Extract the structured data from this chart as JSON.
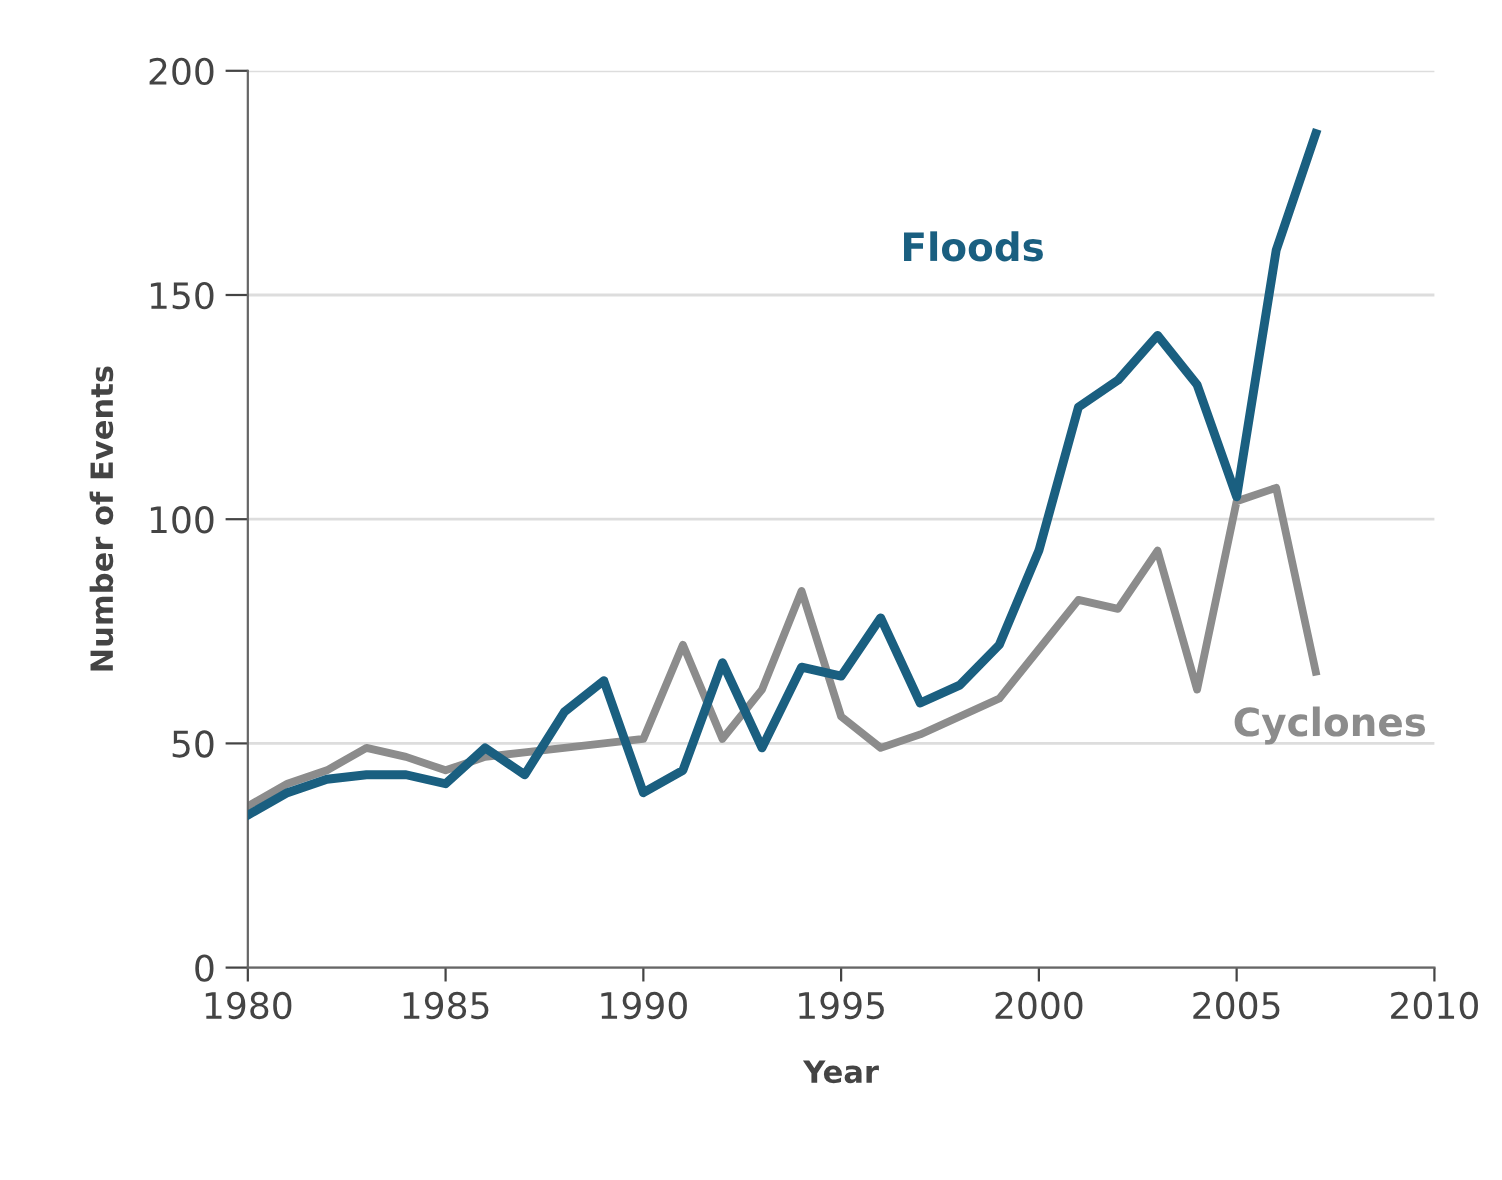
{
  "chart_data": {
    "type": "line",
    "xlabel": "Year",
    "ylabel": "Number of Events",
    "x": [
      1980,
      1981,
      1982,
      1983,
      1984,
      1985,
      1986,
      1987,
      1988,
      1989,
      1990,
      1991,
      1992,
      1993,
      1994,
      1995,
      1996,
      1997,
      1998,
      1999,
      2000,
      2001,
      2002,
      2003,
      2004,
      2005,
      2006,
      2007
    ],
    "series": [
      {
        "name": "Floods",
        "color": "#1a5f80",
        "values": [
          34,
          39,
          42,
          43,
          43,
          41,
          49,
          43,
          57,
          64,
          39,
          44,
          68,
          49,
          67,
          65,
          78,
          59,
          63,
          72,
          93,
          125,
          131,
          141,
          130,
          105,
          160,
          186
        ]
      },
      {
        "name": "Cyclones",
        "color": "#8c8c8c",
        "values": [
          36,
          41,
          44,
          49,
          47,
          44,
          47,
          48,
          49,
          50,
          51,
          72,
          51,
          62,
          84,
          56,
          49,
          52,
          56,
          60,
          71,
          82,
          80,
          93,
          62,
          104,
          107,
          66
        ]
      }
    ],
    "xlim": [
      1980,
      2010
    ],
    "xticks": [
      1980,
      1985,
      1990,
      1995,
      2000,
      2005,
      2010
    ],
    "ylim": [
      0,
      200
    ],
    "yticks": [
      0,
      50,
      100,
      150,
      200
    ],
    "grid": "y",
    "legend": false,
    "marker": "none",
    "line_style": "solid"
  }
}
